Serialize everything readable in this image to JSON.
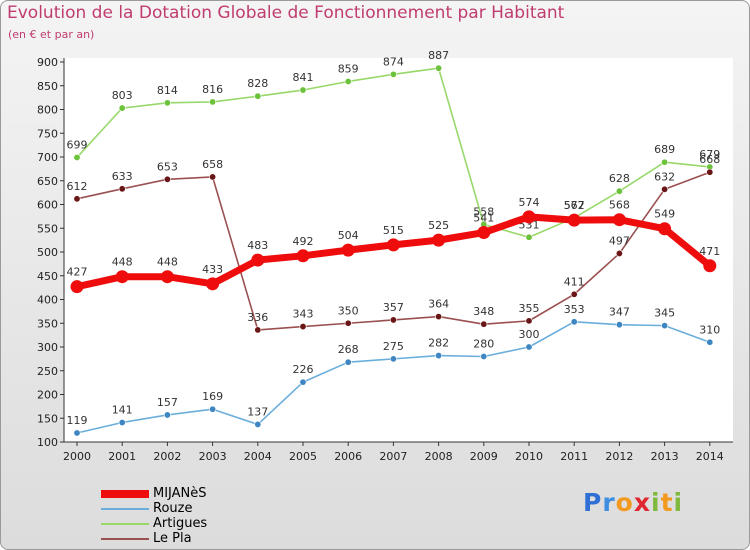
{
  "header": {
    "title": "Evolution de la Dotation Globale de Fonctionnement par Habitant",
    "subtitle": "(en € et par an)"
  },
  "logo": {
    "text": "Proxiti",
    "letters": [
      "P",
      "r",
      "o",
      "x",
      "i",
      "t",
      "i"
    ],
    "colors": [
      "#2f6fd6",
      "#3d8ee0",
      "#f29a1e",
      "#e0262e",
      "#7fb93d",
      "#f29a1e",
      "#7fb93d"
    ]
  },
  "chart_data": {
    "type": "line",
    "title": "Evolution de la Dotation Globale de Fonctionnement par Habitant",
    "subtitle": "(en € et par an)",
    "x": [
      "2000",
      "2001",
      "2002",
      "2003",
      "2004",
      "2005",
      "2006",
      "2007",
      "2008",
      "2009",
      "2010",
      "2011",
      "2012",
      "2013",
      "2014"
    ],
    "ylim": [
      100,
      900
    ],
    "yticks": [
      100,
      150,
      200,
      250,
      300,
      350,
      400,
      450,
      500,
      550,
      600,
      650,
      700,
      750,
      800,
      850,
      900
    ],
    "grid": false,
    "legend_position": "bottom-left",
    "series": [
      {
        "name": "Artigues",
        "color": "#98d86a",
        "marker": "#6cc23a",
        "values": [
          699,
          803,
          814,
          816,
          828,
          841,
          859,
          874,
          887,
          558,
          531,
          572,
          628,
          689,
          679
        ]
      },
      {
        "name": "Le Pla",
        "color": "#9a5050",
        "marker": "#6a1616",
        "values": [
          612,
          633,
          653,
          658,
          336,
          343,
          350,
          357,
          364,
          348,
          355,
          411,
          497,
          632,
          668
        ]
      },
      {
        "name": "Rouze",
        "color": "#6aaedb",
        "marker": "#3e86c2",
        "values": [
          119,
          141,
          157,
          169,
          137,
          226,
          268,
          275,
          282,
          280,
          300,
          353,
          347,
          345,
          310
        ]
      },
      {
        "name": "MIJANèS",
        "color": "#ef0c0c",
        "marker": "#ef0c0c",
        "values": [
          427,
          448,
          448,
          433,
          483,
          492,
          504,
          515,
          525,
          541,
          574,
          567,
          568,
          549,
          471
        ]
      }
    ],
    "labels": [
      {
        "series": "Artigues",
        "text": [
          "699",
          "803",
          "814",
          "816",
          "828",
          "841",
          "859",
          "874",
          "887",
          "558",
          "531",
          "572",
          "628",
          "689",
          "679"
        ]
      },
      {
        "series": "Le Pla",
        "text": [
          "612",
          "633",
          "653",
          "658",
          "336",
          "343",
          "350",
          "357",
          "364",
          "348",
          "355",
          "411",
          "497",
          "632",
          "668"
        ]
      },
      {
        "series": "Rouze",
        "text": [
          "119",
          "141",
          "157",
          "169",
          "137",
          "226",
          "268",
          "275",
          "282",
          "280",
          "300",
          "353",
          "347",
          "345",
          "310"
        ]
      },
      {
        "series": "MIJANèS",
        "text": [
          "427",
          "448",
          "448",
          "433",
          "483",
          "492",
          "504",
          "515",
          "525",
          "541",
          "574",
          "567",
          "568",
          "549",
          "471"
        ]
      }
    ]
  },
  "legend": {
    "items": [
      {
        "label": "MIJANèS",
        "color": "#ef0c0c",
        "thickness": "thick"
      },
      {
        "label": "Rouze",
        "color": "#6aaedb",
        "thickness": "thin"
      },
      {
        "label": "Artigues",
        "color": "#98d86a",
        "thickness": "thin"
      },
      {
        "label": "Le Pla",
        "color": "#9a5050",
        "thickness": "thin"
      }
    ]
  }
}
